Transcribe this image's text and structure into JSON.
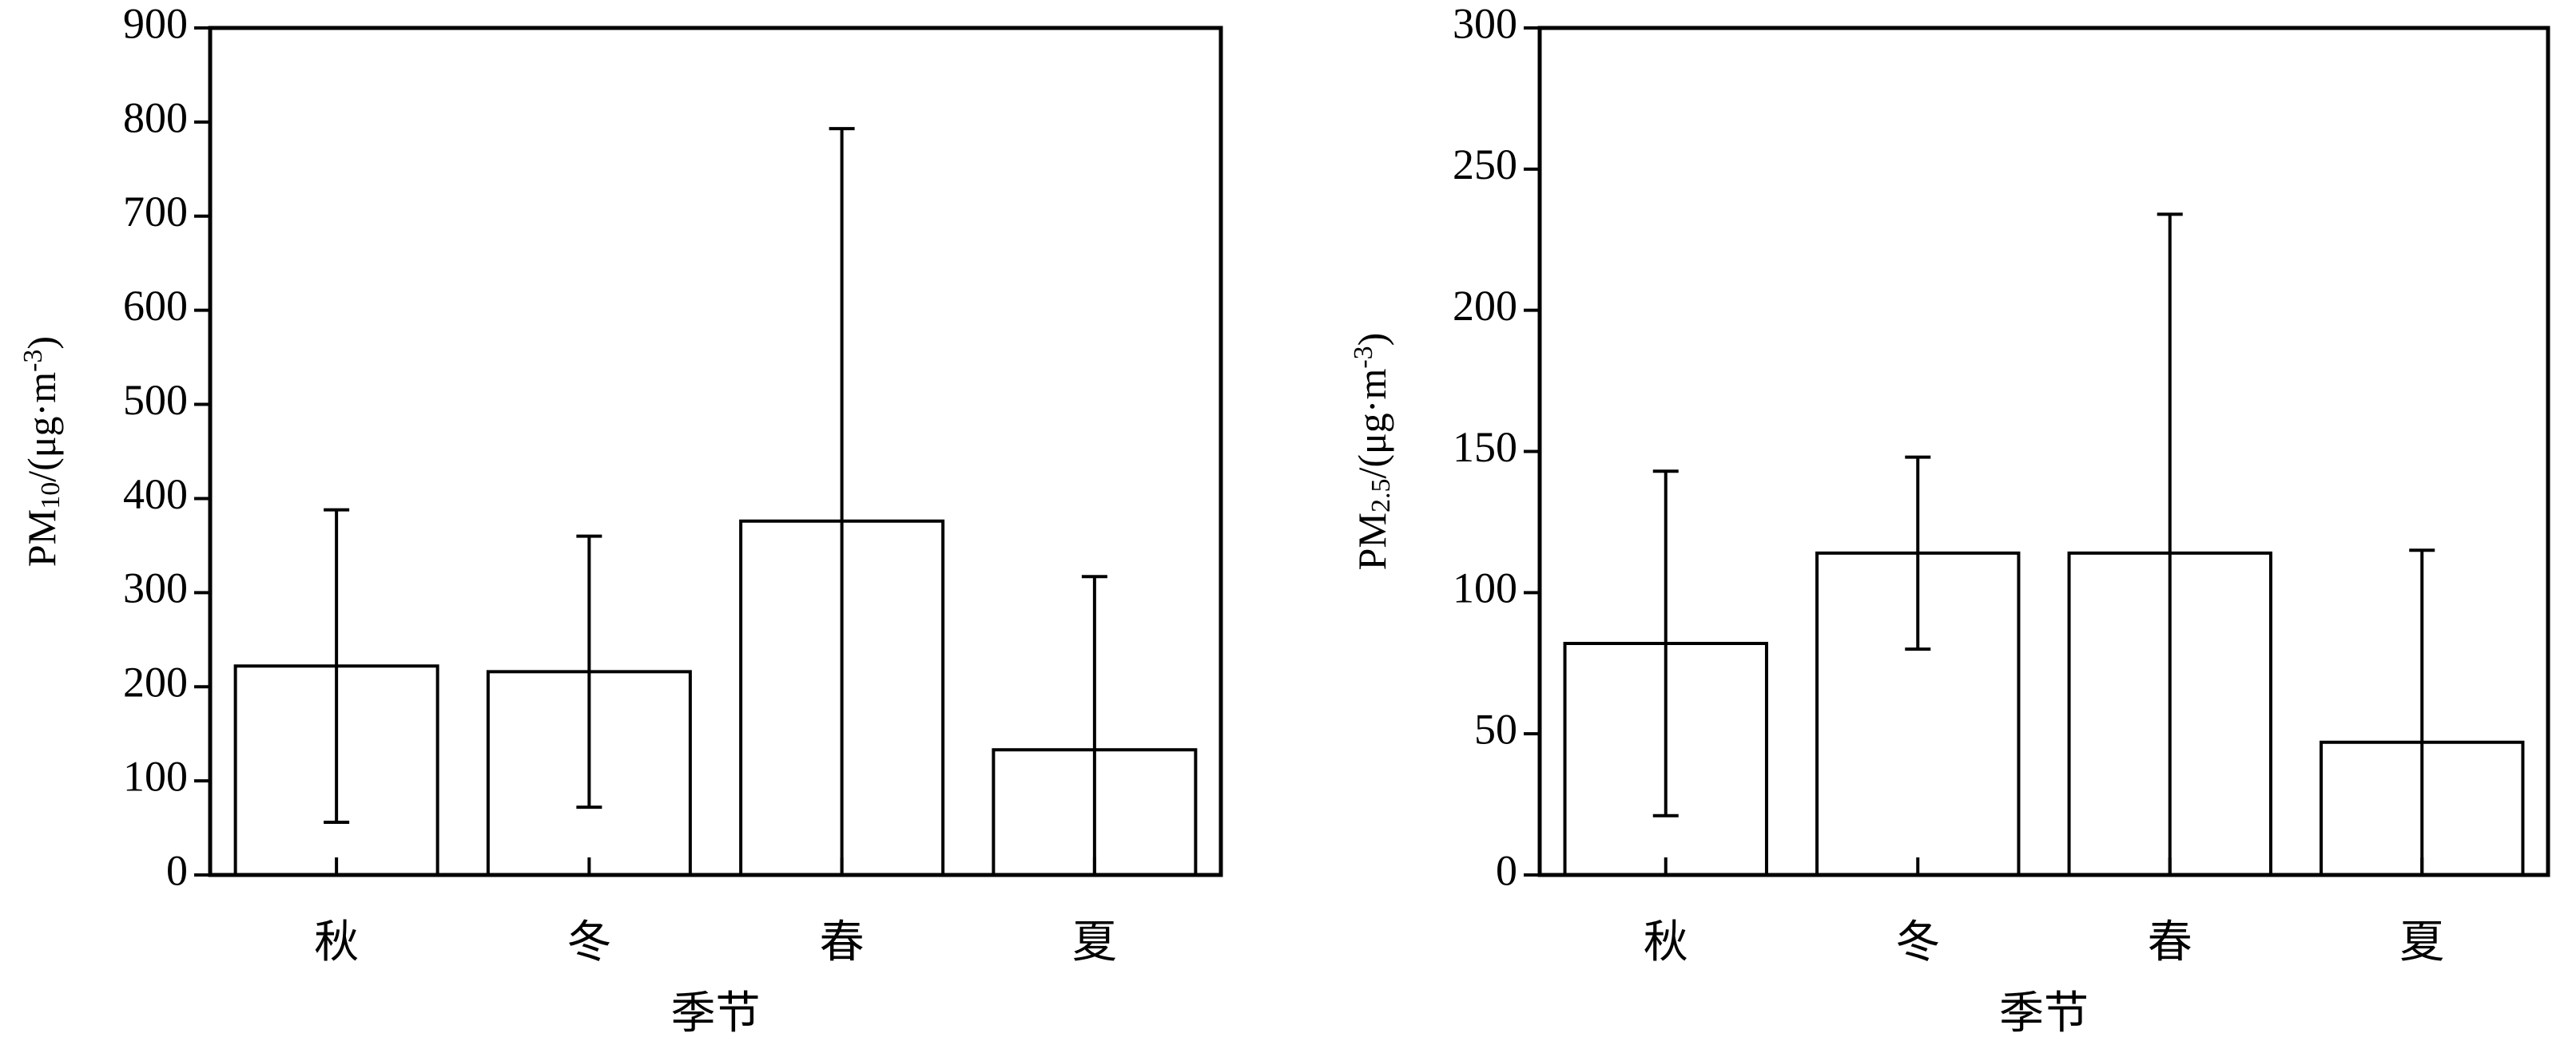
{
  "chart_data": [
    {
      "type": "bar",
      "categories": [
        "秋",
        "冬",
        "春",
        "夏"
      ],
      "values": [
        222,
        216,
        376,
        133
      ],
      "errors": [
        166,
        144,
        417,
        184
      ],
      "x_label": "季节",
      "y_label": [
        "PM",
        "10",
        "/(μg·m",
        "-3",
        ")"
      ],
      "color": "#ffffff",
      "ylim": [
        0,
        900
      ],
      "yticks": [
        0,
        100,
        200,
        300,
        400,
        500,
        600,
        700,
        800,
        900
      ],
      "grid": false
    },
    {
      "type": "bar",
      "categories": [
        "秋",
        "冬",
        "春",
        "夏"
      ],
      "values": [
        82,
        114,
        114,
        47
      ],
      "errors": [
        61,
        34,
        120,
        68
      ],
      "x_label": "季节",
      "y_label": [
        "PM",
        "2.5",
        "/(μg·m",
        "-3",
        ")"
      ],
      "color": "#ffffff",
      "ylim": [
        0,
        300
      ],
      "yticks": [
        0,
        50,
        100,
        150,
        200,
        250,
        300
      ],
      "grid": false
    }
  ]
}
